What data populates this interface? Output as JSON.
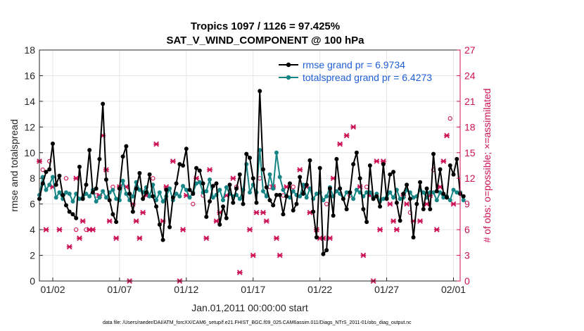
{
  "chart_data": {
    "type": "line",
    "title": "Tropics 1097 / 1126 = 97.425%",
    "subtitle": "SAT_V_WIND_COMPONENT @ 100 hPa",
    "xlabel": "Jan.01,2011 00:00:00 start",
    "ylabel_left": "rmse and totalspread",
    "ylabel_right": "# of obs: o=possible; ×=assimilated",
    "ylim_left": [
      0,
      18
    ],
    "ylim_right": [
      0,
      27
    ],
    "xlim_days": [
      0,
      31.5
    ],
    "x_ticks": [
      {
        "day": 1,
        "label": "01/02"
      },
      {
        "day": 6,
        "label": "01/07"
      },
      {
        "day": 11,
        "label": "01/12"
      },
      {
        "day": 16,
        "label": "01/17"
      },
      {
        "day": 21,
        "label": "01/22"
      },
      {
        "day": 26,
        "label": "01/27"
      },
      {
        "day": 31,
        "label": "02/01"
      }
    ],
    "y_ticks_left": [
      "0",
      "2",
      "4",
      "6",
      "8",
      "10",
      "12",
      "14",
      "16",
      "18"
    ],
    "y_ticks_right": [
      "0",
      "3",
      "6",
      "9",
      "12",
      "15",
      "18",
      "21",
      "24",
      "27"
    ],
    "x_step_days": 0.25,
    "series": [
      {
        "name": "rmse",
        "legend": "rmse grand pr = 6.9734",
        "color": "#000000",
        "values": [
          6.4,
          7.6,
          8.5,
          8.7,
          10.7,
          7.5,
          8.2,
          6.7,
          5.9,
          5.4,
          5.2,
          4.9,
          8.9,
          6.4,
          7.5,
          10.2,
          6.9,
          7.2,
          9.5,
          13.8,
          7.9,
          6.3,
          5.2,
          4.6,
          7.2,
          9.7,
          10.5,
          6.8,
          5.4,
          7.2,
          8.4,
          6.4,
          6.9,
          8.3,
          6.6,
          5.8,
          4.4,
          3.2,
          7.1,
          4.2,
          6.5,
          7.6,
          9.1,
          9.0,
          10.3,
          7.1,
          6.8,
          8.8,
          8.6,
          7.6,
          5.0,
          6.2,
          7.4,
          7.6,
          4.4,
          5.8,
          4.9,
          7.5,
          6.1,
          7.2,
          8.3,
          6.0,
          9.9,
          9.6,
          8.0,
          6.1,
          14.8,
          8.7,
          7.3,
          6.3,
          5.9,
          6.7,
          6.7,
          5.2,
          6.6,
          7.6,
          5.5,
          6.0,
          8.1,
          6.8,
          7.5,
          9.4,
          5.4,
          3.4,
          8.8,
          2.1,
          2.4,
          7.2,
          5.1,
          9.5,
          7.2,
          6.4,
          5.6,
          6.9,
          9.1,
          10.0,
          8.0,
          5.6,
          4.6,
          9.0,
          6.4,
          6.6,
          5.8,
          9.1,
          6.4,
          8.3,
          8.5,
          6.1,
          4.7,
          6.8,
          7.5,
          6.4,
          3.4,
          6.0,
          7.7,
          5.6,
          7.2,
          5.6,
          9.9,
          7.0,
          8.7,
          6.8,
          6.5,
          9.0,
          8.3,
          9.5,
          6.8,
          6.6
        ]
      },
      {
        "name": "totalspread",
        "legend": "totalspread grand pr = 6.4273",
        "color": "#178585",
        "values": [
          6.7,
          8.1,
          7.1,
          7.5,
          8.1,
          6.5,
          6.9,
          6.4,
          6.9,
          6.8,
          6.2,
          6.8,
          6.4,
          6.5,
          6.8,
          6.6,
          7.1,
          6.2,
          6.5,
          7.0,
          6.5,
          6.9,
          7.1,
          6.4,
          6.3,
          7.8,
          6.8,
          6.3,
          6.6,
          7.7,
          7.1,
          6.9,
          7.3,
          6.6,
          7.5,
          6.3,
          6.9,
          6.2,
          6.6,
          7.2,
          6.3,
          6.8,
          6.6,
          7.4,
          7.1,
          6.5,
          6.9,
          7.6,
          7.7,
          6.9,
          7.0,
          7.9,
          6.5,
          6.7,
          7.1,
          6.3,
          7.3,
          6.8,
          6.6,
          6.7,
          6.4,
          7.1,
          9.1,
          6.9,
          7.5,
          6.9,
          10.2,
          7.0,
          6.6,
          8.3,
          7.2,
          10.0,
          8.1,
          7.1,
          6.6,
          6.5,
          7.0,
          6.7,
          6.6,
          7.5,
          6.5,
          7.2,
          6.4,
          6.8,
          6.9,
          6.3,
          6.6,
          7.3,
          6.6,
          7.0,
          6.8,
          6.4,
          6.9,
          6.9,
          6.4,
          7.1,
          6.9,
          6.6,
          6.9,
          6.9,
          6.5,
          6.8,
          6.2,
          6.4,
          6.5,
          6.9,
          6.5,
          7.1,
          6.4,
          6.5,
          7.1,
          6.9,
          6.5,
          6.6,
          7.1,
          6.9,
          6.5,
          6.9,
          6.9,
          6.3,
          6.9,
          6.5,
          6.6,
          6.3,
          7.1,
          6.9,
          6.9,
          6.3
        ]
      }
    ],
    "obs_possible": {
      "marker": "o",
      "color": "#cc1155",
      "points": [
        {
          "day": 0.25,
          "n": 13
        },
        {
          "day": 0.75,
          "n": 14
        },
        {
          "day": 2.0,
          "n": 12
        },
        {
          "day": 4.25,
          "n": 10
        },
        {
          "day": 5.5,
          "n": 11
        },
        {
          "day": 8.5,
          "n": 12
        },
        {
          "day": 11.5,
          "n": 9
        },
        {
          "day": 12.25,
          "n": 10
        },
        {
          "day": 14.75,
          "n": 11
        },
        {
          "day": 16.5,
          "n": 12
        },
        {
          "day": 17.25,
          "n": 11
        },
        {
          "day": 18.25,
          "n": 10
        },
        {
          "day": 19.0,
          "n": 11
        },
        {
          "day": 21.5,
          "n": 9
        },
        {
          "day": 23.25,
          "n": 10
        },
        {
          "day": 24.5,
          "n": 11
        },
        {
          "day": 27.75,
          "n": 8
        },
        {
          "day": 29.5,
          "n": 13
        },
        {
          "day": 30.75,
          "n": 19
        },
        {
          "day": 2.75,
          "n": 6
        },
        {
          "day": 3.5,
          "n": 6
        }
      ]
    },
    "obs_assimilated": {
      "marker": "×",
      "color": "#cc1155",
      "points": [
        {
          "day": 0.0,
          "n": 14
        },
        {
          "day": 0.5,
          "n": 6
        },
        {
          "day": 1.0,
          "n": 11
        },
        {
          "day": 1.5,
          "n": 6
        },
        {
          "day": 2.25,
          "n": 4
        },
        {
          "day": 2.75,
          "n": 12
        },
        {
          "day": 3.0,
          "n": 5
        },
        {
          "day": 3.25,
          "n": 7
        },
        {
          "day": 3.75,
          "n": 6
        },
        {
          "day": 4.0,
          "n": 6
        },
        {
          "day": 4.5,
          "n": 10
        },
        {
          "day": 4.75,
          "n": 17
        },
        {
          "day": 5.0,
          "n": 13
        },
        {
          "day": 5.25,
          "n": 7
        },
        {
          "day": 5.75,
          "n": 5
        },
        {
          "day": 6.0,
          "n": 11
        },
        {
          "day": 6.5,
          "n": 11
        },
        {
          "day": 6.75,
          "n": 0
        },
        {
          "day": 7.0,
          "n": 9
        },
        {
          "day": 7.25,
          "n": 7
        },
        {
          "day": 7.5,
          "n": 5
        },
        {
          "day": 7.75,
          "n": 8
        },
        {
          "day": 8.0,
          "n": 10
        },
        {
          "day": 8.75,
          "n": 16
        },
        {
          "day": 9.25,
          "n": 7
        },
        {
          "day": 9.5,
          "n": 11
        },
        {
          "day": 10.0,
          "n": 14
        },
        {
          "day": 10.5,
          "n": 0
        },
        {
          "day": 10.75,
          "n": 6
        },
        {
          "day": 11.0,
          "n": 10
        },
        {
          "day": 11.75,
          "n": 12
        },
        {
          "day": 12.5,
          "n": 5
        },
        {
          "day": 12.75,
          "n": 13
        },
        {
          "day": 13.25,
          "n": 7
        },
        {
          "day": 13.5,
          "n": 8
        },
        {
          "day": 14.0,
          "n": 10
        },
        {
          "day": 14.5,
          "n": 12
        },
        {
          "day": 15.0,
          "n": 1
        },
        {
          "day": 15.75,
          "n": 6
        },
        {
          "day": 16.0,
          "n": 3
        },
        {
          "day": 16.25,
          "n": 8
        },
        {
          "day": 16.75,
          "n": 8
        },
        {
          "day": 17.0,
          "n": 7
        },
        {
          "day": 17.5,
          "n": 11
        },
        {
          "day": 17.75,
          "n": 5
        },
        {
          "day": 18.0,
          "n": 3
        },
        {
          "day": 18.5,
          "n": 11
        },
        {
          "day": 19.5,
          "n": 13
        },
        {
          "day": 20.0,
          "n": 11
        },
        {
          "day": 20.25,
          "n": 8
        },
        {
          "day": 20.75,
          "n": 6
        },
        {
          "day": 21.0,
          "n": 5
        },
        {
          "day": 21.25,
          "n": 5
        },
        {
          "day": 21.75,
          "n": 5
        },
        {
          "day": 22.0,
          "n": 12
        },
        {
          "day": 22.5,
          "n": 16
        },
        {
          "day": 23.0,
          "n": 17
        },
        {
          "day": 23.5,
          "n": 18
        },
        {
          "day": 24.0,
          "n": 11
        },
        {
          "day": 24.25,
          "n": 3
        },
        {
          "day": 24.75,
          "n": 10
        },
        {
          "day": 25.0,
          "n": 0
        },
        {
          "day": 25.25,
          "n": 14
        },
        {
          "day": 25.5,
          "n": 6
        },
        {
          "day": 25.75,
          "n": 14
        },
        {
          "day": 26.25,
          "n": 9
        },
        {
          "day": 26.5,
          "n": 7
        },
        {
          "day": 26.75,
          "n": 6
        },
        {
          "day": 27.25,
          "n": 10
        },
        {
          "day": 27.5,
          "n": 9
        },
        {
          "day": 28.0,
          "n": 7
        },
        {
          "day": 28.5,
          "n": 7
        },
        {
          "day": 29.0,
          "n": 9
        },
        {
          "day": 29.25,
          "n": 10
        },
        {
          "day": 29.75,
          "n": 6
        },
        {
          "day": 30.0,
          "n": 11
        },
        {
          "day": 30.25,
          "n": 14
        },
        {
          "day": 30.5,
          "n": 17
        },
        {
          "day": 31.0,
          "n": 9
        }
      ]
    },
    "footnote": "data file: /Users/raeder/DAI/ATM_forcXX/CAM6_setup/f.e21.FHIST_BGC.f09_025.CAM6assim.011/Diags_NTrS_2011-01/obs_diag_output.nc"
  }
}
